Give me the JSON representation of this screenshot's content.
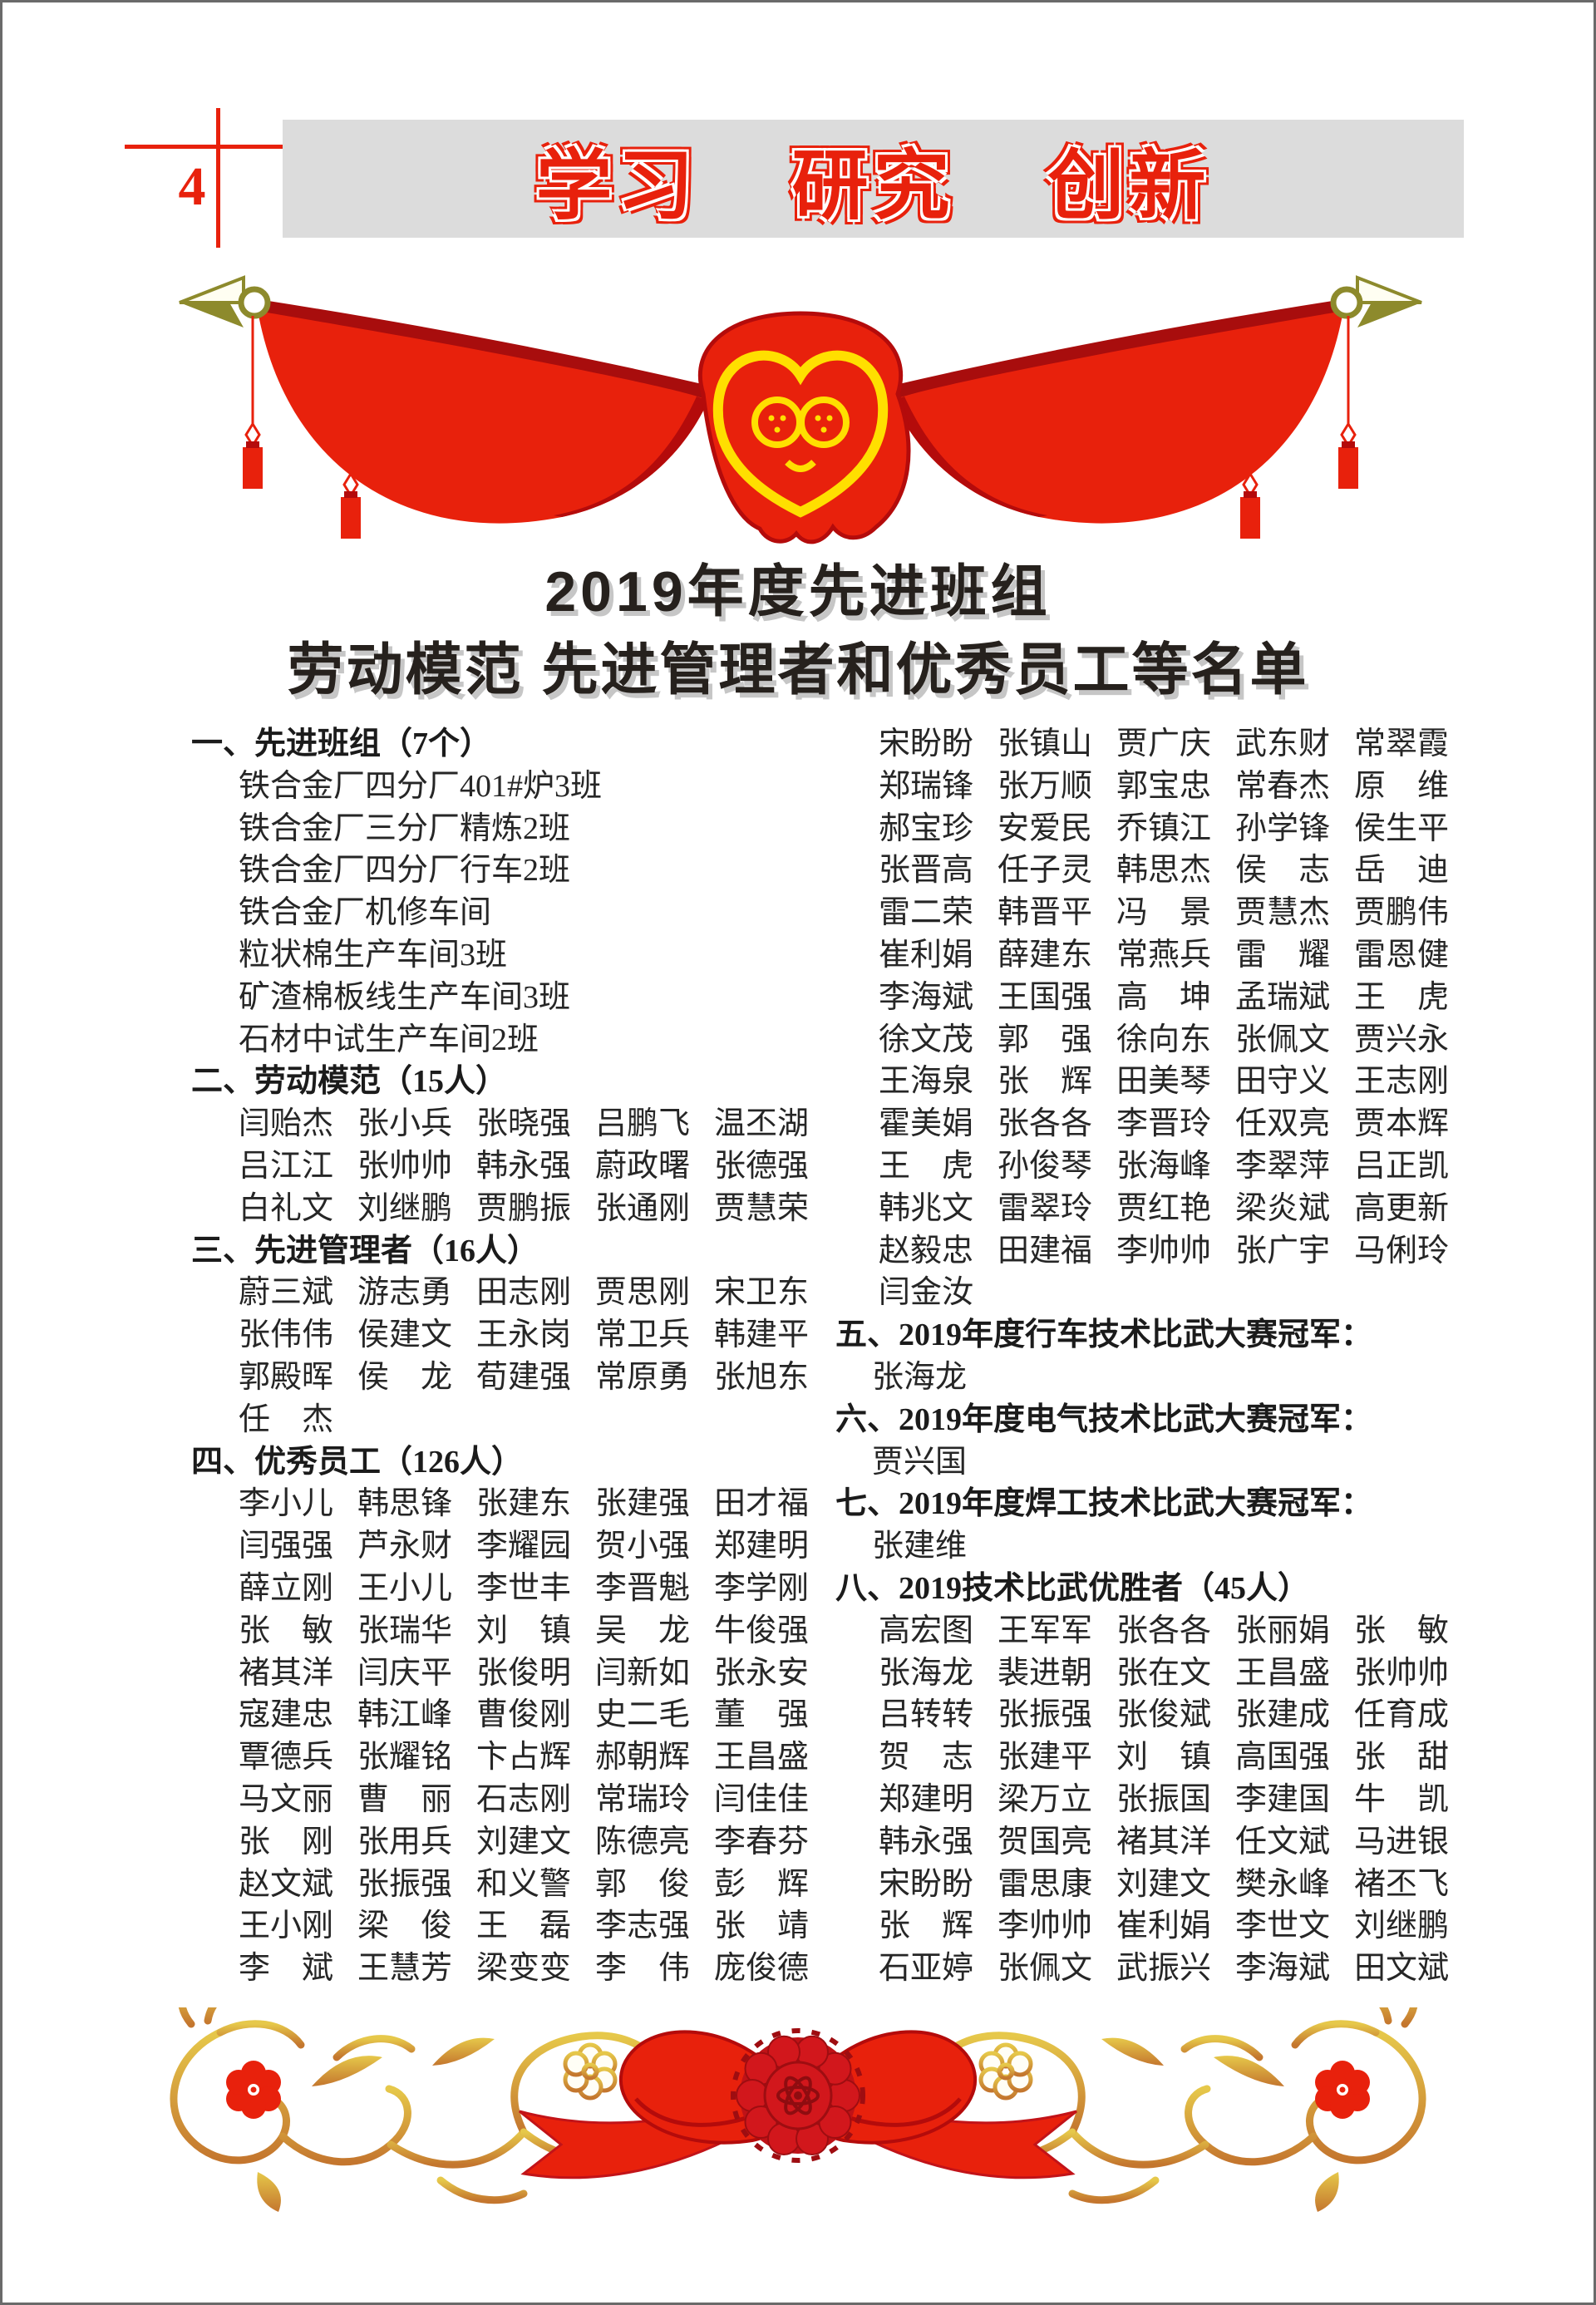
{
  "page_number": "4",
  "slogan": {
    "words": [
      "学习",
      "研究",
      "创新"
    ]
  },
  "title": {
    "line1": "2019年度先进班组",
    "line2": "劳动模范 先进管理者和优秀员工等名单"
  },
  "colors": {
    "accent_red": "#e8210c",
    "dark_red": "#b40b0b",
    "gold": "#8d8a2c",
    "scroll_gold_light": "#e6c84a",
    "scroll_gold_dark": "#c4762e",
    "bar_gray": "#dcdcdc",
    "title_shadow": "#c6c6c6",
    "text": "#262626"
  },
  "decorations": {
    "top_banner": "red-curtain-banner-with-gold-finials-tassels-and-gold-heart-emblem",
    "bottom_border": "gold-floral-scroll-with-red-ribbon-bow-and-rosette"
  },
  "columns": [
    {
      "side": "left",
      "lines": [
        {
          "t": "h",
          "text": "一、先进班组（7个）"
        },
        {
          "t": "i",
          "text": "铁合金厂四分厂401#炉3班"
        },
        {
          "t": "i",
          "text": "铁合金厂三分厂精炼2班"
        },
        {
          "t": "i",
          "text": "铁合金厂四分厂行车2班"
        },
        {
          "t": "i",
          "text": "铁合金厂机修车间"
        },
        {
          "t": "i",
          "text": "粒状棉生产车间3班"
        },
        {
          "t": "i",
          "text": "矿渣棉板线生产车间3班"
        },
        {
          "t": "i",
          "text": "石材中试生产车间2班"
        },
        {
          "t": "h",
          "text": "二、劳动模范（15人）"
        },
        {
          "t": "n",
          "names": [
            "闫贻杰",
            "张小兵",
            "张晓强",
            "吕鹏飞",
            "温丕湖"
          ]
        },
        {
          "t": "n",
          "names": [
            "吕江江",
            "张帅帅",
            "韩永强",
            "蔚政曙",
            "张德强"
          ]
        },
        {
          "t": "n",
          "names": [
            "白礼文",
            "刘继鹏",
            "贾鹏振",
            "张通刚",
            "贾慧荣"
          ]
        },
        {
          "t": "h",
          "text": "三、先进管理者（16人）"
        },
        {
          "t": "n",
          "names": [
            "蔚三斌",
            "游志勇",
            "田志刚",
            "贾思刚",
            "宋卫东"
          ]
        },
        {
          "t": "n",
          "names": [
            "张伟伟",
            "侯建文",
            "王永岗",
            "常卫兵",
            "韩建平"
          ]
        },
        {
          "t": "n",
          "names": [
            "郭殿晖",
            "侯　龙",
            "荀建强",
            "常原勇",
            "张旭东"
          ]
        },
        {
          "t": "n",
          "names": [
            "任　杰"
          ]
        },
        {
          "t": "h",
          "text": "四、优秀员工（126人）"
        },
        {
          "t": "n",
          "names": [
            "李小儿",
            "韩思锋",
            "张建东",
            "张建强",
            "田才福"
          ]
        },
        {
          "t": "n",
          "names": [
            "闫强强",
            "芦永财",
            "李耀园",
            "贺小强",
            "郑建明"
          ]
        },
        {
          "t": "n",
          "names": [
            "薛立刚",
            "王小儿",
            "李世丰",
            "李晋魁",
            "李学刚"
          ]
        },
        {
          "t": "n",
          "names": [
            "张　敏",
            "张瑞华",
            "刘　镇",
            "吴　龙",
            "牛俊强"
          ]
        },
        {
          "t": "n",
          "names": [
            "褚其洋",
            "闫庆平",
            "张俊明",
            "闫新如",
            "张永安"
          ]
        },
        {
          "t": "n",
          "names": [
            "寇建忠",
            "韩江峰",
            "曹俊刚",
            "史二毛",
            "董　强"
          ]
        },
        {
          "t": "n",
          "names": [
            "覃德兵",
            "张耀铭",
            "卞占辉",
            "郝朝辉",
            "王昌盛"
          ]
        },
        {
          "t": "n",
          "names": [
            "马文丽",
            "曹　丽",
            "石志刚",
            "常瑞玲",
            "闫佳佳"
          ]
        },
        {
          "t": "n",
          "names": [
            "张　刚",
            "张用兵",
            "刘建文",
            "陈德亮",
            "李春芬"
          ]
        },
        {
          "t": "n",
          "names": [
            "赵文斌",
            "张振强",
            "和义警",
            "郭　俊",
            "彭　辉"
          ]
        },
        {
          "t": "n",
          "names": [
            "王小刚",
            "梁　俊",
            "王　磊",
            "李志强",
            "张　靖"
          ]
        },
        {
          "t": "n",
          "names": [
            "李　斌",
            "王慧芳",
            "梁变变",
            "李　伟",
            "庞俊德"
          ]
        }
      ]
    },
    {
      "side": "right",
      "lines": [
        {
          "t": "n",
          "names": [
            "宋盼盼",
            "张镇山",
            "贾广庆",
            "武东财",
            "常翠霞"
          ]
        },
        {
          "t": "n",
          "names": [
            "郑瑞锋",
            "张万顺",
            "郭宝忠",
            "常春杰",
            "原　维"
          ]
        },
        {
          "t": "n",
          "names": [
            "郝宝珍",
            "安爱民",
            "乔镇江",
            "孙学锋",
            "侯生平"
          ]
        },
        {
          "t": "n",
          "names": [
            "张晋高",
            "任子灵",
            "韩思杰",
            "侯　志",
            "岳　迪"
          ]
        },
        {
          "t": "n",
          "names": [
            "雷二荣",
            "韩晋平",
            "冯　景",
            "贾慧杰",
            "贾鹏伟"
          ]
        },
        {
          "t": "n",
          "names": [
            "崔利娟",
            "薛建东",
            "常燕兵",
            "雷　耀",
            "雷恩健"
          ]
        },
        {
          "t": "n",
          "names": [
            "李海斌",
            "王国强",
            "高　坤",
            "孟瑞斌",
            "王　虎"
          ]
        },
        {
          "t": "n",
          "names": [
            "徐文茂",
            "郭　强",
            "徐向东",
            "张佩文",
            "贾兴永"
          ]
        },
        {
          "t": "n",
          "names": [
            "王海泉",
            "张　辉",
            "田美琴",
            "田守义",
            "王志刚"
          ]
        },
        {
          "t": "n",
          "names": [
            "霍美娟",
            "张各各",
            "李晋玲",
            "任双亮",
            "贾本辉"
          ]
        },
        {
          "t": "n",
          "names": [
            "王　虎",
            "孙俊琴",
            "张海峰",
            "李翠萍",
            "吕正凯"
          ]
        },
        {
          "t": "n",
          "names": [
            "韩兆文",
            "雷翠玲",
            "贾红艳",
            "梁炎斌",
            "高更新"
          ]
        },
        {
          "t": "n",
          "names": [
            "赵毅忠",
            "田建福",
            "李帅帅",
            "张广宇",
            "马俐玲"
          ]
        },
        {
          "t": "n",
          "names": [
            "闫金汝"
          ]
        },
        {
          "t": "h",
          "text": "五、2019年度行车技术比武大赛冠军："
        },
        {
          "t": "i",
          "text": "张海龙"
        },
        {
          "t": "h",
          "text": "六、2019年度电气技术比武大赛冠军："
        },
        {
          "t": "i",
          "text": "贾兴国"
        },
        {
          "t": "h",
          "text": "七、2019年度焊工技术比武大赛冠军："
        },
        {
          "t": "i",
          "text": "张建维"
        },
        {
          "t": "h",
          "text": "八、2019技术比武优胜者（45人）"
        },
        {
          "t": "n",
          "names": [
            "高宏图",
            "王军军",
            "张各各",
            "张丽娟",
            "张　敏"
          ]
        },
        {
          "t": "n",
          "names": [
            "张海龙",
            "裴进朝",
            "张在文",
            "王昌盛",
            "张帅帅"
          ]
        },
        {
          "t": "n",
          "names": [
            "吕转转",
            "张振强",
            "张俊斌",
            "张建成",
            "任育成"
          ]
        },
        {
          "t": "n",
          "names": [
            "贺　志",
            "张建平",
            "刘　镇",
            "高国强",
            "张　甜"
          ]
        },
        {
          "t": "n",
          "names": [
            "郑建明",
            "梁万立",
            "张振国",
            "李建国",
            "牛　凯"
          ]
        },
        {
          "t": "n",
          "names": [
            "韩永强",
            "贺国亮",
            "褚其洋",
            "任文斌",
            "马进银"
          ]
        },
        {
          "t": "n",
          "names": [
            "宋盼盼",
            "雷思康",
            "刘建文",
            "樊永峰",
            "褚丕飞"
          ]
        },
        {
          "t": "n",
          "names": [
            "张　辉",
            "李帅帅",
            "崔利娟",
            "李世文",
            "刘继鹏"
          ]
        },
        {
          "t": "n",
          "names": [
            "石亚婷",
            "张佩文",
            "武振兴",
            "李海斌",
            "田文斌"
          ]
        }
      ]
    }
  ]
}
